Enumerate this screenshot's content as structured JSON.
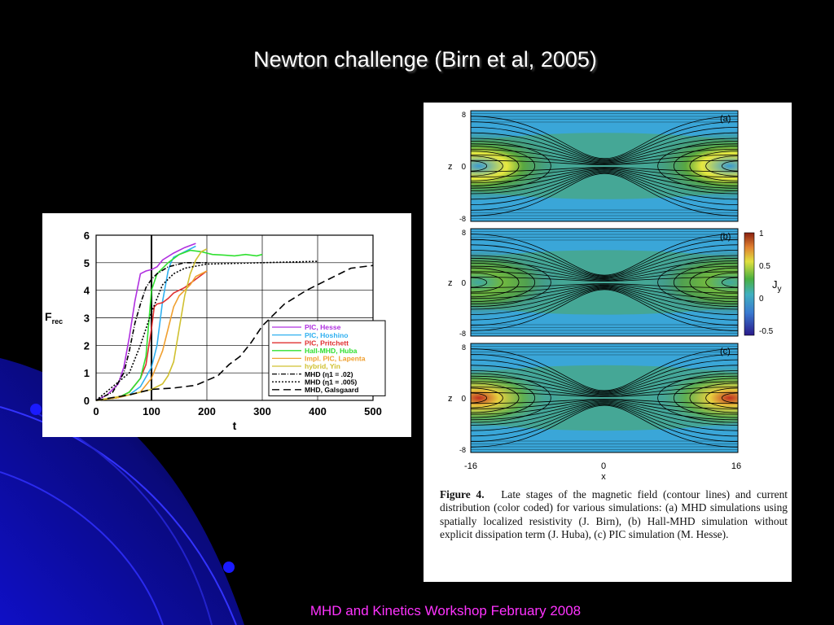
{
  "slide": {
    "title": "Newton challenge (Birn et al, 2005)",
    "footer": "MHD and Kinetics Workshop February 2008"
  },
  "colors": {
    "background": "#000000",
    "swoosh": "#1a1aff",
    "title": "#ffffff",
    "footer": "#ff33ff"
  },
  "chart_data": [
    {
      "type": "line",
      "xlabel": "t",
      "ylabel": "F",
      "ylabel_sub": "rec",
      "xlim": [
        0,
        500
      ],
      "ylim": [
        0,
        6
      ],
      "xticks": [
        "0",
        "100",
        "200",
        "300",
        "400",
        "500"
      ],
      "yticks": [
        "0",
        "1",
        "2",
        "3",
        "4",
        "5",
        "6"
      ],
      "grid": true,
      "legend_position": "bottom-right",
      "series": [
        {
          "name": "PIC, Hesse",
          "color": "#b030e0",
          "dash": "",
          "x": [
            0,
            20,
            40,
            50,
            60,
            70,
            80,
            90,
            100,
            110,
            120,
            140,
            160,
            180
          ],
          "y": [
            0,
            0.2,
            0.6,
            1.2,
            2.3,
            3.6,
            4.6,
            4.7,
            4.75,
            4.85,
            5.1,
            5.35,
            5.55,
            5.7
          ]
        },
        {
          "name": "PIC, Hoshino",
          "color": "#30b0f0",
          "dash": "",
          "x": [
            0,
            40,
            60,
            80,
            100,
            110,
            120,
            130,
            135,
            140,
            160,
            180
          ],
          "y": [
            0,
            0.1,
            0.2,
            0.5,
            1.2,
            2.0,
            3.6,
            4.7,
            5.0,
            5.2,
            5.4,
            5.6
          ]
        },
        {
          "name": "PIC, Pritchett",
          "color": "#e03030",
          "dash": "",
          "x": [
            0,
            40,
            60,
            80,
            90,
            100,
            105,
            110,
            120,
            130,
            140,
            160,
            180,
            200
          ],
          "y": [
            0,
            0.1,
            0.3,
            0.8,
            1.3,
            2.6,
            3.4,
            3.5,
            3.55,
            3.7,
            3.9,
            4.1,
            4.4,
            4.7
          ]
        },
        {
          "name": "Hall-MHD, Huba",
          "color": "#30e030",
          "dash": "",
          "x": [
            0,
            40,
            60,
            80,
            90,
            95,
            100,
            110,
            130,
            150,
            170,
            190,
            200,
            210,
            230,
            250,
            270,
            290,
            300
          ],
          "y": [
            0,
            0.1,
            0.3,
            0.8,
            1.6,
            2.8,
            4.0,
            4.6,
            5.0,
            5.3,
            5.45,
            5.4,
            5.35,
            5.3,
            5.28,
            5.25,
            5.3,
            5.25,
            5.3
          ]
        },
        {
          "name": "Impl. PIC, Lapenta",
          "color": "#f0a030",
          "dash": "",
          "x": [
            0,
            40,
            80,
            100,
            120,
            140,
            150,
            160,
            170,
            180,
            200
          ],
          "y": [
            0,
            0.1,
            0.3,
            0.8,
            1.8,
            3.4,
            3.8,
            4.0,
            4.2,
            4.5,
            4.7
          ]
        },
        {
          "name": "hybrid, Yin",
          "color": "#d0c030",
          "dash": "",
          "x": [
            0,
            60,
            100,
            120,
            130,
            140,
            150,
            160,
            170,
            180,
            190,
            200
          ],
          "y": [
            0,
            0.2,
            0.4,
            0.6,
            0.9,
            1.4,
            2.6,
            3.8,
            4.6,
            5.1,
            5.4,
            5.5
          ]
        },
        {
          "name": "MHD (η1 = .02)",
          "color": "#000000",
          "dash": "6,2,1,2",
          "x": [
            0,
            30,
            50,
            60,
            70,
            80,
            90,
            100,
            110,
            130,
            160,
            200
          ],
          "y": [
            0,
            0.3,
            1.0,
            1.8,
            2.8,
            3.5,
            4.1,
            4.4,
            4.6,
            4.85,
            5.0,
            5.0
          ]
        },
        {
          "name": "MHD (η1 = .005)",
          "color": "#000000",
          "dash": "2,2",
          "x": [
            0,
            60,
            80,
            100,
            120,
            140,
            160,
            200,
            300,
            400
          ],
          "y": [
            0,
            1.0,
            2.0,
            3.2,
            4.2,
            4.6,
            4.8,
            4.95,
            5.0,
            5.05
          ]
        },
        {
          "name": "MHD, Galsgaard",
          "color": "#000000",
          "dash": "9,5",
          "x": [
            0,
            60,
            100,
            140,
            180,
            220,
            240,
            260,
            280,
            300,
            320,
            340,
            380,
            420,
            460,
            500
          ],
          "y": [
            0,
            0.2,
            0.4,
            0.45,
            0.55,
            0.9,
            1.3,
            1.6,
            2.1,
            2.7,
            3.1,
            3.5,
            4.0,
            4.4,
            4.8,
            4.9
          ]
        }
      ]
    },
    {
      "type": "heatmap",
      "panels": [
        "(a)",
        "(b)",
        "(c)"
      ],
      "ylabel": "z",
      "xlabel": "x",
      "xticks": [
        "-16",
        "0",
        "16"
      ],
      "yticks": [
        "-8",
        "0",
        "8"
      ],
      "colorbar": {
        "label": "J",
        "label_sub": "y",
        "ticks": [
          "1",
          "0.5",
          "0",
          "-0.5"
        ]
      }
    }
  ],
  "figure_caption": {
    "label": "Figure 4.",
    "text": "Late stages of the magnetic field (contour lines) and current distribution (color coded) for various simulations: (a) MHD simulations using spatially localized resistivity (J. Birn), (b) Hall-MHD simulation without explicit dissipation term (J. Huba), (c) PIC simulation (M. Hesse)."
  }
}
